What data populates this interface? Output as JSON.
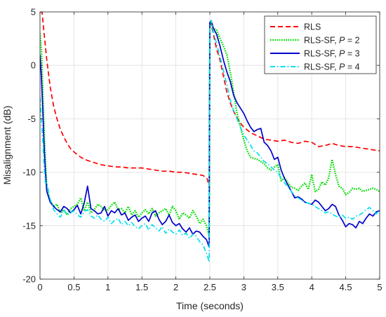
{
  "chart_data": {
    "type": "line",
    "title": "",
    "xlabel": "Time (seconds)",
    "ylabel": "Misalignment (dB)",
    "xlim": [
      0,
      5
    ],
    "ylim": [
      -20,
      5
    ],
    "xticks": [
      0,
      0.5,
      1,
      1.5,
      2,
      2.5,
      3,
      3.5,
      4,
      4.5,
      5
    ],
    "xtick_labels": [
      "0",
      "0.5",
      "1",
      "1.5",
      "2",
      "2.5",
      "3",
      "3.5",
      "4",
      "4.5",
      "5"
    ],
    "yticks": [
      -20,
      -15,
      -10,
      -5,
      0,
      5
    ],
    "ytick_labels": [
      "-20",
      "-15",
      "-10",
      "-5",
      "0",
      "5"
    ],
    "grid": true,
    "legend_position": "top-right",
    "series": [
      {
        "name": "RLS",
        "legend_label": "RLS",
        "legend_italic": "",
        "legend_suffix": "",
        "color": "#ff0000",
        "dash": "dashed",
        "x": [
          0.0,
          0.03,
          0.06,
          0.1,
          0.15,
          0.2,
          0.25,
          0.3,
          0.35,
          0.4,
          0.45,
          0.5,
          0.6,
          0.7,
          0.8,
          0.9,
          1.0,
          1.1,
          1.2,
          1.3,
          1.4,
          1.5,
          1.6,
          1.7,
          1.8,
          1.9,
          2.0,
          2.1,
          2.2,
          2.3,
          2.4,
          2.46,
          2.49,
          2.5,
          2.52,
          2.55,
          2.6,
          2.65,
          2.7,
          2.75,
          2.8,
          2.85,
          2.9,
          2.95,
          3.0,
          3.1,
          3.2,
          3.3,
          3.4,
          3.5,
          3.6,
          3.7,
          3.8,
          3.9,
          4.0,
          4.1,
          4.2,
          4.3,
          4.4,
          4.5,
          4.6,
          4.7,
          4.8,
          4.9,
          5.0
        ],
        "y": [
          5.0,
          5.0,
          3.0,
          0.5,
          -2.0,
          -3.8,
          -5.0,
          -6.0,
          -6.7,
          -7.3,
          -7.8,
          -8.1,
          -8.6,
          -8.9,
          -9.1,
          -9.3,
          -9.4,
          -9.5,
          -9.5,
          -9.6,
          -9.6,
          -9.6,
          -9.7,
          -9.8,
          -9.9,
          -9.9,
          -10.0,
          -10.0,
          -10.1,
          -10.2,
          -10.3,
          -10.6,
          -11.3,
          4.0,
          3.8,
          3.0,
          1.5,
          0.5,
          -1.0,
          -2.5,
          -3.5,
          -4.3,
          -4.9,
          -5.4,
          -5.8,
          -6.3,
          -6.6,
          -6.9,
          -7.0,
          -7.1,
          -7.0,
          -7.2,
          -7.3,
          -7.1,
          -7.2,
          -7.6,
          -7.5,
          -7.3,
          -7.5,
          -7.6,
          -7.6,
          -7.7,
          -7.8,
          -7.9,
          -8.0
        ]
      },
      {
        "name": "RLS-SF, P = 2",
        "legend_label": "RLS-SF, ",
        "legend_italic": "P",
        "legend_suffix": " = 2",
        "color": "#00dd00",
        "dash": "dotted",
        "x": [
          0.0,
          0.02,
          0.04,
          0.06,
          0.08,
          0.1,
          0.15,
          0.2,
          0.25,
          0.3,
          0.35,
          0.4,
          0.45,
          0.5,
          0.55,
          0.6,
          0.65,
          0.7,
          0.75,
          0.8,
          0.85,
          0.9,
          0.95,
          1.0,
          1.05,
          1.1,
          1.15,
          1.2,
          1.25,
          1.3,
          1.35,
          1.4,
          1.45,
          1.5,
          1.55,
          1.6,
          1.65,
          1.7,
          1.75,
          1.8,
          1.85,
          1.9,
          1.95,
          2.0,
          2.05,
          2.1,
          2.15,
          2.2,
          2.25,
          2.3,
          2.35,
          2.4,
          2.45,
          2.49,
          2.5,
          2.52,
          2.55,
          2.6,
          2.65,
          2.7,
          2.75,
          2.8,
          2.85,
          2.9,
          2.95,
          3.0,
          3.05,
          3.1,
          3.15,
          3.2,
          3.25,
          3.3,
          3.35,
          3.4,
          3.45,
          3.5,
          3.55,
          3.6,
          3.65,
          3.7,
          3.75,
          3.8,
          3.85,
          3.9,
          3.95,
          4.0,
          4.05,
          4.1,
          4.15,
          4.2,
          4.25,
          4.3,
          4.35,
          4.4,
          4.45,
          4.5,
          4.55,
          4.6,
          4.65,
          4.7,
          4.75,
          4.8,
          4.85,
          4.9,
          4.95,
          5.0
        ],
        "y": [
          3.0,
          1.5,
          -2.0,
          -6.0,
          -9.0,
          -11.5,
          -12.7,
          -13.2,
          -13.0,
          -13.8,
          -13.5,
          -14.0,
          -13.4,
          -13.2,
          -13.0,
          -12.4,
          -13.6,
          -12.8,
          -13.8,
          -13.5,
          -13.0,
          -13.2,
          -13.6,
          -13.5,
          -13.1,
          -12.8,
          -13.5,
          -13.4,
          -13.8,
          -13.2,
          -14.0,
          -13.6,
          -14.2,
          -13.8,
          -13.5,
          -13.9,
          -13.4,
          -14.1,
          -13.8,
          -13.6,
          -13.4,
          -14.0,
          -13.2,
          -13.6,
          -14.4,
          -13.8,
          -14.0,
          -14.3,
          -13.6,
          -14.1,
          -14.8,
          -14.4,
          -15.0,
          -16.0,
          4.0,
          3.8,
          3.5,
          3.3,
          2.5,
          1.8,
          1.0,
          -0.6,
          -2.5,
          -4.5,
          -5.7,
          -7.0,
          -8.0,
          -8.6,
          -8.7,
          -8.8,
          -9.0,
          -9.2,
          -9.6,
          -9.8,
          -9.5,
          -9.3,
          -10.8,
          -10.5,
          -11.0,
          -11.4,
          -11.5,
          -11.7,
          -11.3,
          -11.0,
          -11.6,
          -10.2,
          -11.8,
          -11.6,
          -10.9,
          -11.2,
          -10.5,
          -8.8,
          -10.2,
          -11.3,
          -11.5,
          -12.1,
          -11.9,
          -11.5,
          -11.6,
          -11.5,
          -11.8,
          -11.7,
          -11.6,
          -11.5,
          -11.6,
          -11.8
        ]
      },
      {
        "name": "RLS-SF, P = 3",
        "legend_label": "RLS-SF, ",
        "legend_italic": "P",
        "legend_suffix": " = 3",
        "color": "#0000cc",
        "dash": "solid",
        "x": [
          0.0,
          0.02,
          0.04,
          0.06,
          0.08,
          0.1,
          0.15,
          0.2,
          0.25,
          0.3,
          0.35,
          0.4,
          0.45,
          0.5,
          0.55,
          0.6,
          0.65,
          0.7,
          0.75,
          0.8,
          0.85,
          0.9,
          0.95,
          1.0,
          1.05,
          1.1,
          1.15,
          1.2,
          1.25,
          1.3,
          1.35,
          1.4,
          1.45,
          1.5,
          1.55,
          1.6,
          1.65,
          1.7,
          1.75,
          1.8,
          1.85,
          1.9,
          1.95,
          2.0,
          2.05,
          2.1,
          2.15,
          2.2,
          2.25,
          2.3,
          2.35,
          2.4,
          2.45,
          2.49,
          2.5,
          2.52,
          2.55,
          2.6,
          2.65,
          2.7,
          2.75,
          2.8,
          2.85,
          2.9,
          2.95,
          3.0,
          3.05,
          3.1,
          3.15,
          3.2,
          3.25,
          3.3,
          3.35,
          3.4,
          3.45,
          3.5,
          3.55,
          3.6,
          3.65,
          3.7,
          3.75,
          3.8,
          3.85,
          3.9,
          3.95,
          4.0,
          4.05,
          4.1,
          4.15,
          4.2,
          4.25,
          4.3,
          4.35,
          4.4,
          4.45,
          4.5,
          4.55,
          4.6,
          4.65,
          4.7,
          4.75,
          4.8,
          4.85,
          4.9,
          4.95,
          5.0
        ],
        "y": [
          1.0,
          -1.0,
          -4.0,
          -7.5,
          -10.0,
          -11.8,
          -12.8,
          -13.2,
          -13.5,
          -13.7,
          -13.2,
          -13.4,
          -13.8,
          -13.5,
          -13.1,
          -13.9,
          -12.9,
          -11.3,
          -13.4,
          -13.6,
          -13.9,
          -13.8,
          -13.2,
          -14.1,
          -13.6,
          -13.8,
          -13.4,
          -14.0,
          -13.8,
          -14.5,
          -14.2,
          -14.0,
          -14.6,
          -14.3,
          -14.1,
          -14.6,
          -13.8,
          -13.6,
          -14.4,
          -14.9,
          -14.6,
          -14.0,
          -14.7,
          -15.0,
          -14.8,
          -15.3,
          -15.6,
          -15.2,
          -15.8,
          -15.5,
          -15.6,
          -16.0,
          -16.3,
          -17.0,
          4.0,
          4.2,
          3.5,
          2.9,
          1.8,
          0.5,
          -0.6,
          -1.5,
          -2.8,
          -3.5,
          -4.0,
          -4.5,
          -5.2,
          -5.8,
          -6.2,
          -6.0,
          -5.9,
          -7.2,
          -7.5,
          -8.0,
          -8.8,
          -8.6,
          -9.8,
          -10.6,
          -11.2,
          -11.8,
          -12.4,
          -12.3,
          -12.5,
          -12.8,
          -12.9,
          -13.0,
          -12.6,
          -12.8,
          -13.2,
          -13.6,
          -13.4,
          -13.0,
          -13.2,
          -14.0,
          -14.5,
          -15.1,
          -14.8,
          -14.9,
          -15.2,
          -14.6,
          -14.8,
          -14.3,
          -13.9,
          -14.1,
          -13.7,
          -13.6
        ]
      },
      {
        "name": "RLS-SF, P = 4",
        "legend_label": "RLS-SF, ",
        "legend_italic": "P",
        "legend_suffix": " = 4",
        "color": "#00e0f0",
        "dash": "dashdot",
        "x": [
          0.0,
          0.02,
          0.04,
          0.06,
          0.08,
          0.1,
          0.15,
          0.2,
          0.25,
          0.3,
          0.35,
          0.4,
          0.45,
          0.5,
          0.55,
          0.6,
          0.65,
          0.7,
          0.75,
          0.8,
          0.85,
          0.9,
          0.95,
          1.0,
          1.05,
          1.1,
          1.15,
          1.2,
          1.25,
          1.3,
          1.35,
          1.4,
          1.45,
          1.5,
          1.55,
          1.6,
          1.65,
          1.7,
          1.75,
          1.8,
          1.85,
          1.9,
          1.95,
          2.0,
          2.05,
          2.1,
          2.15,
          2.2,
          2.25,
          2.3,
          2.35,
          2.4,
          2.45,
          2.49,
          2.5,
          2.52,
          2.55,
          2.6,
          2.65,
          2.7,
          2.75,
          2.8,
          2.85,
          2.9,
          2.95,
          3.0,
          3.05,
          3.1,
          3.15,
          3.2,
          3.25,
          3.3,
          3.35,
          3.4,
          3.45,
          3.5,
          3.55,
          3.6,
          3.65,
          3.7,
          3.75,
          3.8,
          3.85,
          3.9,
          3.95,
          4.0,
          4.05,
          4.1,
          4.15,
          4.2,
          4.25,
          4.3,
          4.35,
          4.4,
          4.45,
          4.5,
          4.55,
          4.6,
          4.65,
          4.7,
          4.75,
          4.8,
          4.85,
          4.9,
          4.95,
          5.0
        ],
        "y": [
          -3.0,
          -5.0,
          -7.0,
          -9.5,
          -11.0,
          -11.0,
          -12.5,
          -13.5,
          -13.9,
          -14.2,
          -13.5,
          -14.0,
          -13.8,
          -13.6,
          -14.0,
          -14.2,
          -13.7,
          -13.5,
          -14.1,
          -14.3,
          -14.0,
          -14.4,
          -14.6,
          -14.2,
          -14.8,
          -14.5,
          -14.3,
          -14.9,
          -14.6,
          -15.0,
          -14.7,
          -15.1,
          -15.3,
          -15.0,
          -14.8,
          -15.4,
          -14.9,
          -15.2,
          -15.5,
          -15.1,
          -15.7,
          -15.3,
          -15.6,
          -15.8,
          -15.4,
          -15.9,
          -15.7,
          -16.2,
          -15.8,
          -16.0,
          -16.5,
          -16.8,
          -17.6,
          -18.4,
          3.5,
          4.2,
          3.2,
          2.0,
          0.8,
          -0.5,
          -1.8,
          -3.2,
          -4.2,
          -5.0,
          -5.8,
          -6.5,
          -7.0,
          -7.5,
          -8.0,
          -8.2,
          -8.6,
          -9.0,
          -9.2,
          -9.5,
          -9.8,
          -10.0,
          -10.6,
          -11.0,
          -11.4,
          -11.8,
          -12.2,
          -12.4,
          -12.6,
          -12.8,
          -12.9,
          -13.0,
          -13.2,
          -13.4,
          -13.6,
          -13.8,
          -13.7,
          -13.9,
          -14.1,
          -14.2,
          -14.0,
          -14.3,
          -14.2,
          -14.4,
          -14.1,
          -14.0,
          -13.8,
          -13.5,
          -13.3,
          -13.6,
          -13.9,
          -13.5
        ]
      }
    ]
  }
}
